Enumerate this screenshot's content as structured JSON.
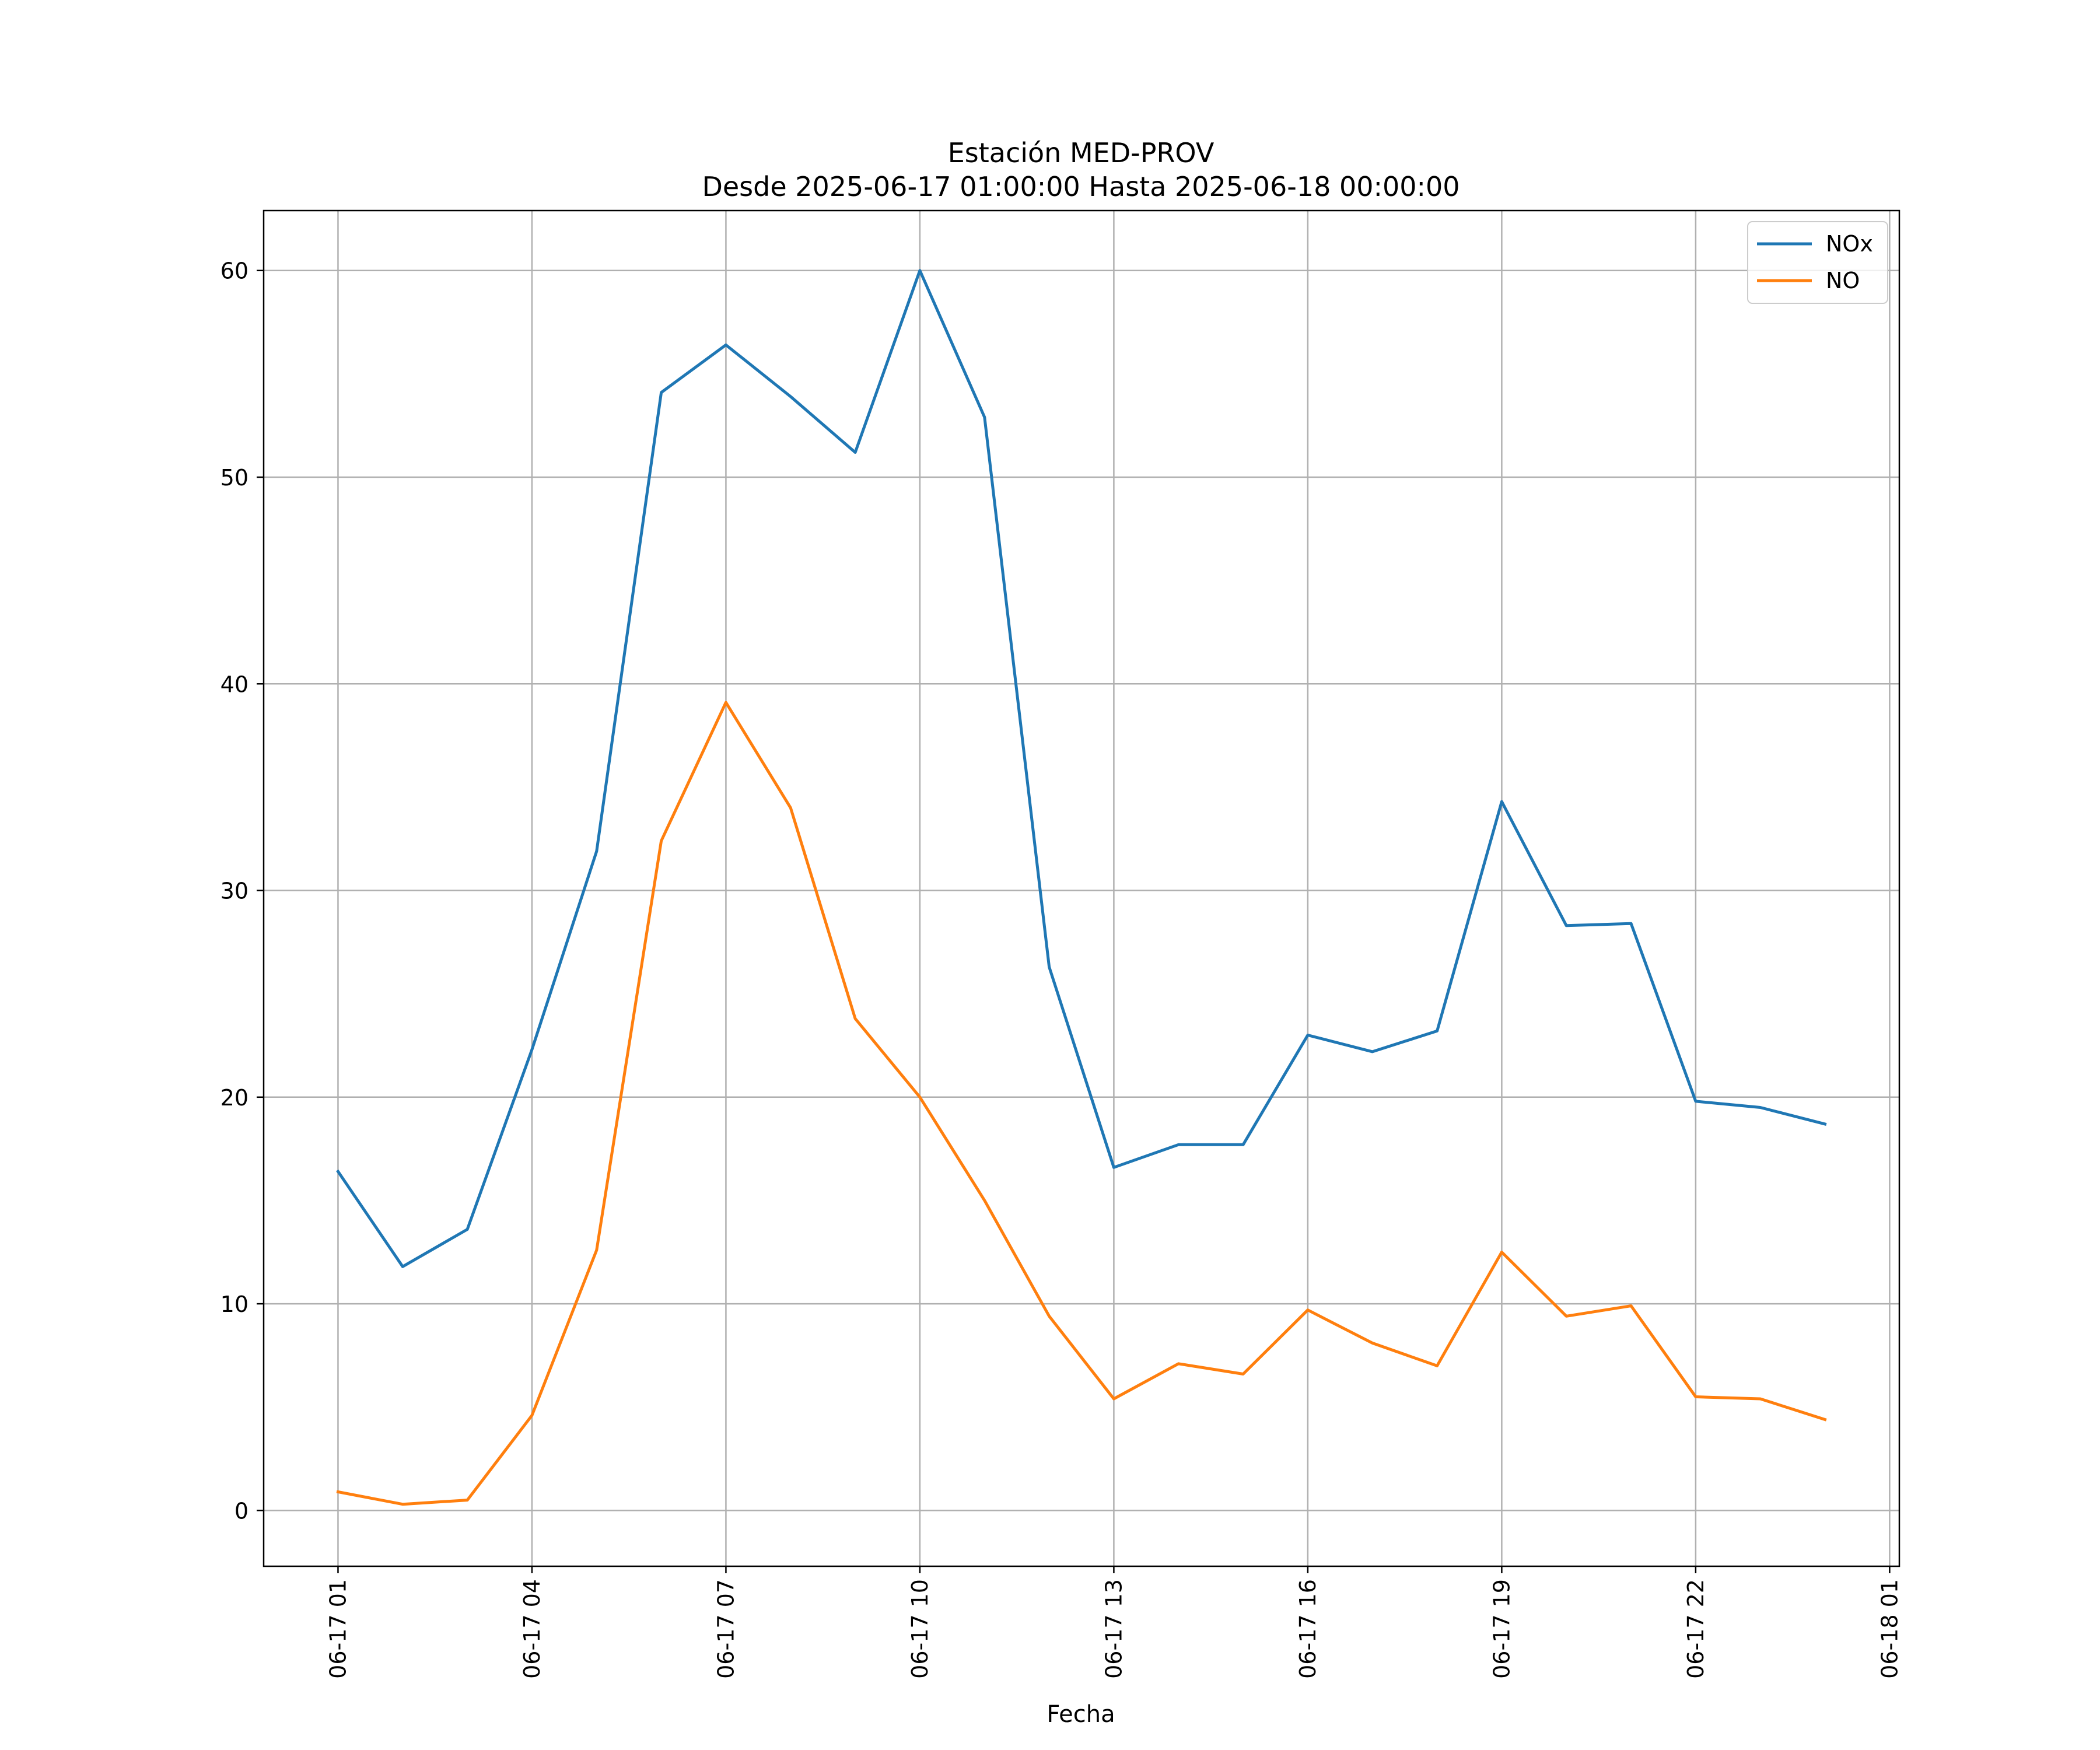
{
  "chart_data": {
    "type": "line",
    "title": "Estación MED-PROV",
    "subtitle": "Desde 2025-06-17 01:00:00 Hasta 2025-06-18 00:00:00",
    "xlabel": "Fecha",
    "ylabel": "",
    "x": [
      "2025-06-17 01:00",
      "2025-06-17 02:00",
      "2025-06-17 03:00",
      "2025-06-17 04:00",
      "2025-06-17 05:00",
      "2025-06-17 06:00",
      "2025-06-17 07:00",
      "2025-06-17 08:00",
      "2025-06-17 09:00",
      "2025-06-17 10:00",
      "2025-06-17 11:00",
      "2025-06-17 12:00",
      "2025-06-17 13:00",
      "2025-06-17 14:00",
      "2025-06-17 15:00",
      "2025-06-17 16:00",
      "2025-06-17 17:00",
      "2025-06-17 18:00",
      "2025-06-17 19:00",
      "2025-06-17 20:00",
      "2025-06-17 21:00",
      "2025-06-17 22:00",
      "2025-06-17 23:00",
      "2025-06-18 00:00"
    ],
    "xlim": [
      "2025-06-16 23:51",
      "2025-06-18 01:09"
    ],
    "ylim": [
      -2.7,
      62.9
    ],
    "x_ticks": [
      {
        "value": "2025-06-17 01:00",
        "label": "06-17 01"
      },
      {
        "value": "2025-06-17 04:00",
        "label": "06-17 04"
      },
      {
        "value": "2025-06-17 07:00",
        "label": "06-17 07"
      },
      {
        "value": "2025-06-17 10:00",
        "label": "06-17 10"
      },
      {
        "value": "2025-06-17 13:00",
        "label": "06-17 13"
      },
      {
        "value": "2025-06-17 16:00",
        "label": "06-17 16"
      },
      {
        "value": "2025-06-17 19:00",
        "label": "06-17 19"
      },
      {
        "value": "2025-06-17 22:00",
        "label": "06-17 22"
      },
      {
        "value": "2025-06-18 01:00",
        "label": "06-18 01"
      }
    ],
    "y_ticks": [
      0,
      10,
      20,
      30,
      40,
      50,
      60
    ],
    "grid": true,
    "legend_position": "top-right",
    "series": [
      {
        "name": "NOx",
        "color": "#1f77b4",
        "values": [
          16.4,
          11.8,
          13.6,
          22.3,
          31.9,
          54.1,
          56.4,
          53.9,
          51.2,
          60.0,
          52.9,
          26.3,
          16.6,
          17.7,
          17.7,
          23.0,
          22.2,
          23.2,
          34.3,
          28.3,
          28.4,
          19.8,
          19.5,
          18.7
        ]
      },
      {
        "name": "NO",
        "color": "#ff7f0e",
        "values": [
          0.9,
          0.3,
          0.5,
          4.6,
          12.6,
          32.4,
          39.1,
          34.0,
          23.8,
          20.0,
          15.0,
          9.4,
          5.4,
          7.1,
          6.6,
          9.7,
          8.1,
          7.0,
          12.5,
          9.4,
          9.9,
          5.5,
          5.4,
          4.4
        ]
      }
    ]
  }
}
